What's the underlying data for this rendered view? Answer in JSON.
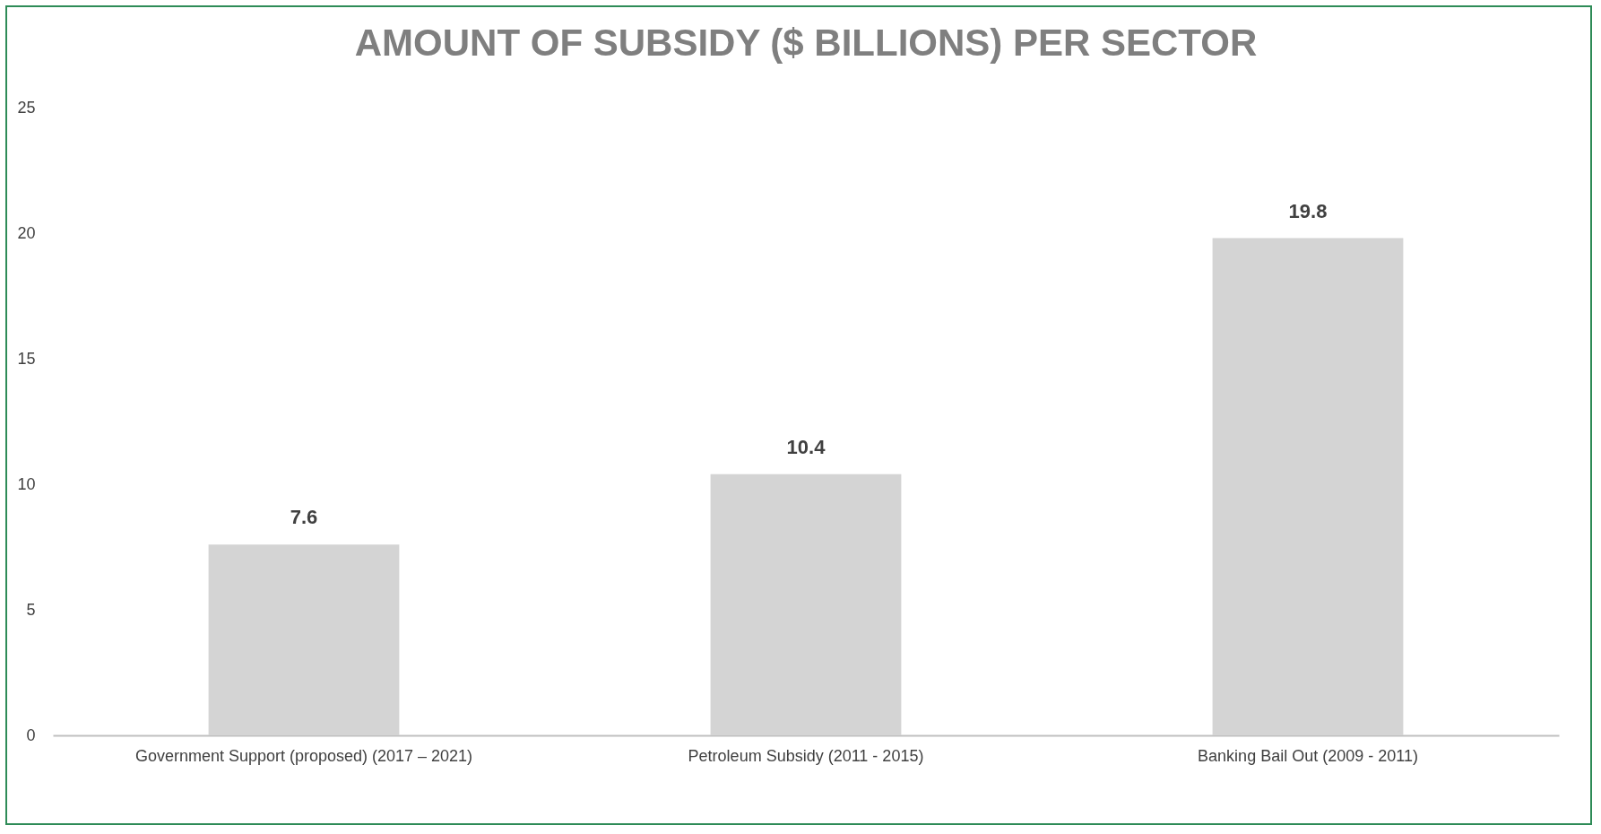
{
  "chart_data": {
    "type": "bar",
    "title": "AMOUNT OF SUBSIDY ($ BILLIONS) PER SECTOR",
    "categories": [
      "Government Support (proposed) (2017 – 2021)",
      "Petroleum Subsidy (2011 - 2015)",
      "Banking Bail Out (2009 - 2011)"
    ],
    "values": [
      7.6,
      10.4,
      19.8
    ],
    "color": "#d4d4d4",
    "ylim": [
      0,
      25
    ],
    "yticks": [
      0,
      5,
      10,
      15,
      20,
      25
    ],
    "grid": false,
    "data_labels": true
  }
}
